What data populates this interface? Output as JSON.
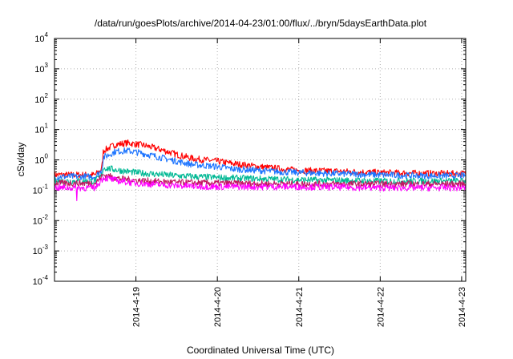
{
  "chart_data": {
    "type": "line",
    "title": "/data/run/goesPlots/archive/2014-04-23/01:00/flux/../bryn/5daysEarthData.plot",
    "xlabel": "Coordinated Universal Time (UTC)",
    "ylabel": "cSv/day",
    "yscale": "log",
    "ylim": [
      0.0001,
      10000
    ],
    "xlim": [
      0,
      5.05
    ],
    "x_unit": "days from 2014-4-18 00:00 UTC",
    "grid": true,
    "yticks": [
      {
        "base": "10",
        "exp": "-4"
      },
      {
        "base": "10",
        "exp": "-3"
      },
      {
        "base": "10",
        "exp": "-2"
      },
      {
        "base": "10",
        "exp": "-1"
      },
      {
        "base": "10",
        "exp": "0"
      },
      {
        "base": "10",
        "exp": "1"
      },
      {
        "base": "10",
        "exp": "2"
      },
      {
        "base": "10",
        "exp": "3"
      },
      {
        "base": "10",
        "exp": "4"
      }
    ],
    "xticks": [
      {
        "x": 1,
        "label": "2014-4-19"
      },
      {
        "x": 2,
        "label": "2014-4-20"
      },
      {
        "x": 3,
        "label": "2014-4-21"
      },
      {
        "x": 4,
        "label": "2014-4-22"
      },
      {
        "x": 5,
        "label": "2014-4-23"
      }
    ],
    "series": [
      {
        "color": "#ff0000",
        "x": [
          0,
          0.5,
          0.58,
          0.6,
          0.75,
          0.9,
          1.0,
          1.1,
          1.3,
          1.5,
          1.7,
          2.0,
          2.2,
          2.5,
          2.8,
          3.0,
          3.5,
          4.0,
          4.5,
          5.05
        ],
        "y": [
          0.32,
          0.32,
          0.5,
          2.0,
          3.2,
          3.6,
          3.3,
          3.0,
          2.2,
          1.5,
          1.1,
          0.9,
          0.75,
          0.6,
          0.5,
          0.45,
          0.42,
          0.38,
          0.36,
          0.35
        ]
      },
      {
        "color": "#1c74ff",
        "x": [
          0,
          0.5,
          0.58,
          0.6,
          0.75,
          0.9,
          1.0,
          1.1,
          1.3,
          1.5,
          1.7,
          2.0,
          2.2,
          2.5,
          2.8,
          3.0,
          3.5,
          4.0,
          4.5,
          5.05
        ],
        "y": [
          0.28,
          0.28,
          0.45,
          1.2,
          1.9,
          2.0,
          1.8,
          1.6,
          1.2,
          0.9,
          0.7,
          0.6,
          0.5,
          0.45,
          0.4,
          0.38,
          0.35,
          0.32,
          0.3,
          0.3
        ]
      },
      {
        "color": "#00b894",
        "x": [
          0,
          0.5,
          0.58,
          0.6,
          0.8,
          1.0,
          1.5,
          2.0,
          3.0,
          4.0,
          5.05
        ],
        "y": [
          0.2,
          0.2,
          0.3,
          0.55,
          0.45,
          0.38,
          0.3,
          0.26,
          0.22,
          0.2,
          0.2
        ]
      },
      {
        "color": "#c01860",
        "x": [
          0,
          0.5,
          0.6,
          0.8,
          1.0,
          1.5,
          2.0,
          3.0,
          4.0,
          5.05
        ],
        "y": [
          0.17,
          0.17,
          0.32,
          0.24,
          0.21,
          0.18,
          0.17,
          0.16,
          0.16,
          0.16
        ]
      },
      {
        "color": "#ff00ff",
        "x": [
          0,
          0.5,
          0.6,
          0.8,
          1.0,
          1.5,
          2.0,
          3.0,
          4.0,
          5.05
        ],
        "y": [
          0.12,
          0.12,
          0.26,
          0.2,
          0.17,
          0.14,
          0.13,
          0.13,
          0.12,
          0.12
        ]
      }
    ]
  }
}
